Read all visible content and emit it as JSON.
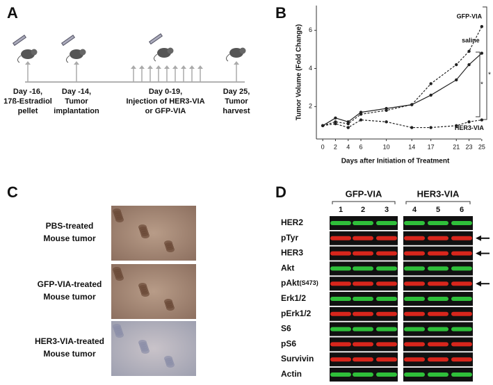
{
  "panels": {
    "A": {
      "letter": "A",
      "events": [
        {
          "lines": [
            "Day -16,",
            "17ß-Estradiol",
            "pellet"
          ]
        },
        {
          "lines": [
            "Day -14,",
            "Tumor",
            "implantation"
          ]
        },
        {
          "lines": [
            "Day 0-19,",
            "Injection of HER3-VIA",
            "or GFP-VIA"
          ]
        },
        {
          "lines": [
            "Day 25,",
            "Tumor",
            "harvest"
          ]
        }
      ]
    },
    "B": {
      "letter": "B"
    },
    "C": {
      "letter": "C",
      "samples": [
        {
          "lines": [
            "PBS-treated",
            "Mouse tumor"
          ]
        },
        {
          "lines": [
            "GFP-VIA-treated",
            "Mouse tumor"
          ]
        },
        {
          "lines": [
            "HER3-VIA-treated",
            "Mouse tumor"
          ]
        }
      ]
    },
    "D": {
      "letter": "D",
      "groups": [
        "GFP-VIA",
        "HER3-VIA"
      ],
      "lanes": [
        "1",
        "2",
        "3",
        "4",
        "5",
        "6"
      ],
      "rows": [
        {
          "label": "HER2",
          "color": "green"
        },
        {
          "label": "pTyr",
          "color": "red",
          "arrow": true
        },
        {
          "label": "HER3",
          "color": "red",
          "arrow": true
        },
        {
          "label": "Akt",
          "color": "green"
        },
        {
          "label": "pAkt",
          "sub": "(S473)",
          "color": "red",
          "arrow": true
        },
        {
          "label": "Erk1/2",
          "color": "green"
        },
        {
          "label": "pErk1/2",
          "color": "red"
        },
        {
          "label": "S6",
          "color": "green"
        },
        {
          "label": "pS6",
          "color": "red"
        },
        {
          "label": "Survivin",
          "color": "red"
        },
        {
          "label": "Actin",
          "color": "green"
        }
      ]
    }
  },
  "chart_data": {
    "type": "line",
    "y_label": "Tumor Volume (Fold Change)",
    "x_label": "Days after Initiation of Treatment",
    "x": [
      0,
      2,
      4,
      6,
      10,
      14,
      17,
      21,
      23,
      25
    ],
    "xlim": [
      -1,
      26
    ],
    "xticks": [
      0,
      2,
      4,
      6,
      10,
      14,
      17,
      21,
      23,
      25
    ],
    "ylim": [
      0.3,
      7.3
    ],
    "yticks": [
      2,
      4,
      6
    ],
    "series": [
      {
        "name": "GFP-VIA",
        "color": "#222222",
        "line_style": "dashed",
        "values": [
          1,
          1.2,
          1.1,
          1.6,
          1.8,
          2.1,
          3.2,
          4.2,
          4.9,
          6.2
        ]
      },
      {
        "name": "saline",
        "color": "#222222",
        "line_style": "solid",
        "values": [
          1,
          1.4,
          1.2,
          1.7,
          1.9,
          2.1,
          2.6,
          3.4,
          4.2,
          4.8
        ]
      },
      {
        "name": "HER3-VIA",
        "color": "#222222",
        "line_style": "dashed",
        "values": [
          1,
          1.1,
          0.9,
          1.3,
          1.2,
          0.9,
          0.9,
          1.0,
          1.2,
          1.3
        ]
      }
    ],
    "annotations": [
      "*",
      "*"
    ]
  }
}
